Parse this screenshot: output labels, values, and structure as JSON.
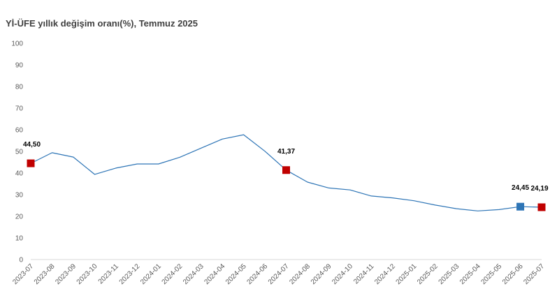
{
  "chart_data": {
    "type": "line",
    "title": "Yİ-ÜFE yıllık değişim oranı(%), Temmuz 2025",
    "xlabel": "",
    "ylabel": "",
    "ylim": [
      0,
      100
    ],
    "yticks": [
      0,
      10,
      20,
      30,
      40,
      50,
      60,
      70,
      80,
      90,
      100
    ],
    "grid": false,
    "categories": [
      "2023-07",
      "2023-08",
      "2023-09",
      "2023-10",
      "2023-11",
      "2023-12",
      "2024-01",
      "2024-02",
      "2024-03",
      "2024-04",
      "2024-05",
      "2024-06",
      "2024-07",
      "2024-08",
      "2024-09",
      "2024-10",
      "2024-11",
      "2024-12",
      "2025-01",
      "2025-02",
      "2025-03",
      "2025-04",
      "2025-05",
      "2025-06",
      "2025-07"
    ],
    "series": [
      {
        "values": [
          44.5,
          49.4,
          47.4,
          39.4,
          42.3,
          44.2,
          44.2,
          47.3,
          51.5,
          55.7,
          57.7,
          50.1,
          41.37,
          35.8,
          33.1,
          32.2,
          29.4,
          28.5,
          27.2,
          25.2,
          23.5,
          22.5,
          23.1,
          24.45,
          24.19
        ],
        "color": "#2e75b6"
      }
    ],
    "markers": [
      {
        "index": 0,
        "label": "44,50",
        "color": "#c00000"
      },
      {
        "index": 12,
        "label": "41,37",
        "color": "#c00000"
      },
      {
        "index": 23,
        "label": "24,45",
        "color": "#2e75b6"
      },
      {
        "index": 24,
        "label": "24,19",
        "color": "#c00000"
      }
    ]
  }
}
